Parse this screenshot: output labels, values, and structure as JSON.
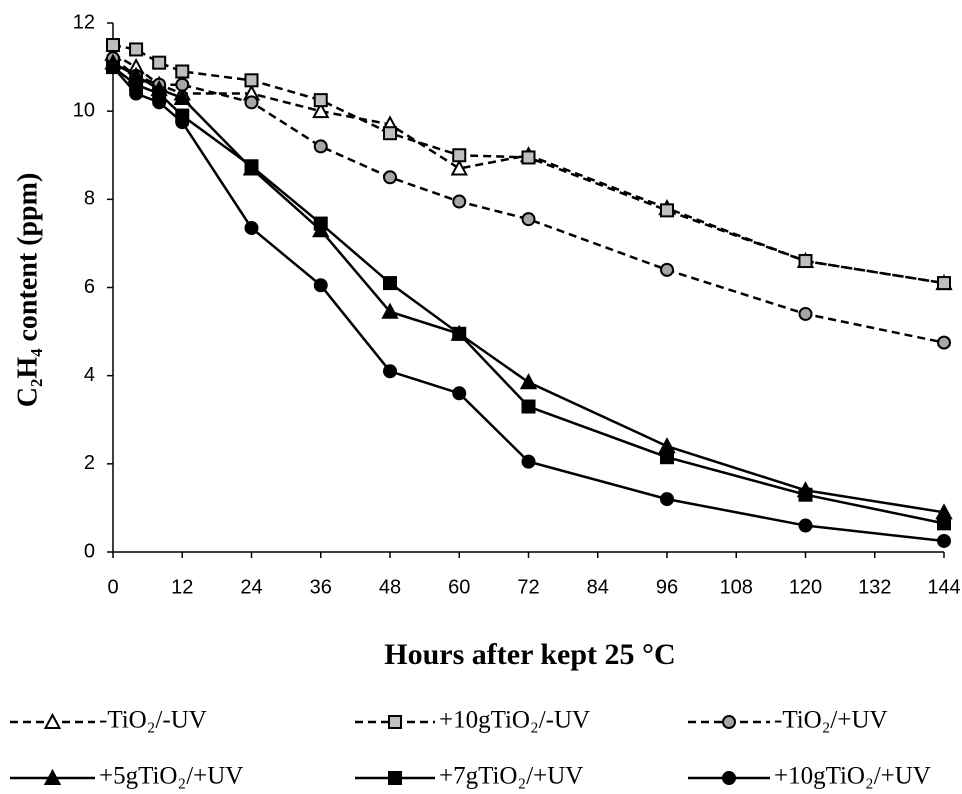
{
  "chart_data": {
    "type": "line",
    "x_label": "Hours after kept 25 °C",
    "y_label": "C₂H₄ content (ppm)",
    "x": [
      0,
      4,
      8,
      12,
      24,
      36,
      48,
      60,
      72,
      96,
      120,
      144
    ],
    "xlim": [
      0,
      144
    ],
    "xticks": [
      0,
      12,
      24,
      36,
      48,
      60,
      72,
      84,
      96,
      108,
      120,
      132,
      144
    ],
    "ylim": [
      0,
      12
    ],
    "yticks": [
      0,
      2,
      4,
      6,
      8,
      10,
      12
    ],
    "grid": false,
    "legend": "bottom",
    "series": [
      {
        "name": "-TiO₂/-UV",
        "color": "#000000",
        "dashed": true,
        "marker": "triangle",
        "marker_fill": "#ffffff",
        "values": [
          11.3,
          11.0,
          10.6,
          10.4,
          10.4,
          10.0,
          9.7,
          8.7,
          9.0,
          7.8,
          6.6,
          6.1
        ]
      },
      {
        "name": "+10gTiO₂/-UV",
        "color": "#000000",
        "dashed": true,
        "marker": "square",
        "marker_fill": "#bfbfbf",
        "values": [
          11.5,
          11.4,
          11.1,
          10.9,
          10.7,
          10.25,
          9.5,
          9.0,
          8.95,
          7.75,
          6.6,
          6.1
        ]
      },
      {
        "name": "-TiO₂/+UV",
        "color": "#000000",
        "dashed": true,
        "marker": "circle",
        "marker_fill": "#a6a6a6",
        "values": [
          11.2,
          10.8,
          10.6,
          10.6,
          10.2,
          9.2,
          8.5,
          7.95,
          7.55,
          6.4,
          5.4,
          4.75
        ]
      },
      {
        "name": "+5gTiO₂/+UV",
        "color": "#000000",
        "dashed": false,
        "marker": "triangle",
        "marker_fill": "#000000",
        "values": [
          11.1,
          10.8,
          10.5,
          10.3,
          8.7,
          7.3,
          5.45,
          4.95,
          3.85,
          2.4,
          1.4,
          0.9
        ]
      },
      {
        "name": "+7gTiO₂/+UV",
        "color": "#000000",
        "dashed": false,
        "marker": "square",
        "marker_fill": "#000000",
        "values": [
          11.0,
          10.6,
          10.4,
          9.9,
          8.75,
          7.45,
          6.1,
          4.95,
          3.3,
          2.15,
          1.3,
          0.65
        ]
      },
      {
        "name": "+10gTiO₂/+UV",
        "color": "#000000",
        "dashed": false,
        "marker": "circle",
        "marker_fill": "#000000",
        "values": [
          11.0,
          10.4,
          10.2,
          9.75,
          7.35,
          6.05,
          4.1,
          3.6,
          2.05,
          1.2,
          0.6,
          0.25
        ]
      }
    ]
  }
}
